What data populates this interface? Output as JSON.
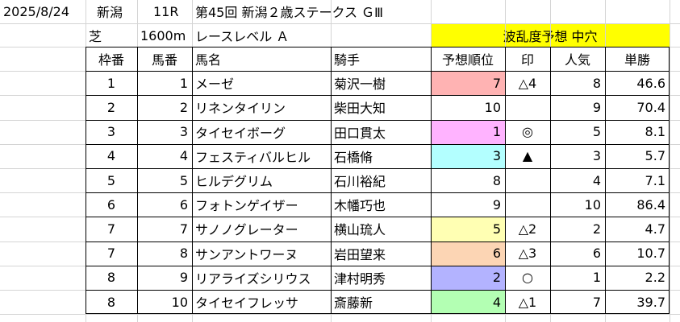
{
  "header": {
    "date": "2025/8/24",
    "venue": "新潟",
    "race_no": "11R",
    "race_name": "第45回 新潟２歳ステークス ＧⅢ",
    "surface": "芝",
    "distance": "1600m",
    "race_level": "レースレベル Ａ",
    "forecast_label": "波乱度予想 中穴"
  },
  "table": {
    "columns": [
      "枠番",
      "馬番",
      "馬名",
      "騎手",
      "予想順位",
      "印",
      "人気",
      "単勝"
    ],
    "rows": [
      {
        "waku": "1",
        "umaban": "1",
        "horse": "メーゼ",
        "jockey": "菊沢一樹",
        "rank": "7",
        "mark": "△4",
        "pop": "8",
        "odds": "46.6",
        "rank_color": "#ffb3b3"
      },
      {
        "waku": "2",
        "umaban": "2",
        "horse": "リネンタイリン",
        "jockey": "柴田大知",
        "rank": "10",
        "mark": "",
        "pop": "9",
        "odds": "70.4",
        "rank_color": ""
      },
      {
        "waku": "3",
        "umaban": "3",
        "horse": "タイセイボーグ",
        "jockey": "田口貫太",
        "rank": "1",
        "mark": "◎",
        "pop": "5",
        "odds": "8.1",
        "rank_color": "#ffb3ff"
      },
      {
        "waku": "4",
        "umaban": "4",
        "horse": "フェスティバルヒル",
        "jockey": "石橋脩",
        "rank": "3",
        "mark": "▲",
        "pop": "3",
        "odds": "5.7",
        "rank_color": "#b3ffff"
      },
      {
        "waku": "5",
        "umaban": "5",
        "horse": "ヒルデグリム",
        "jockey": "石川裕紀",
        "rank": "8",
        "mark": "",
        "pop": "4",
        "odds": "7.1",
        "rank_color": ""
      },
      {
        "waku": "6",
        "umaban": "6",
        "horse": "フォトンゲイザー",
        "jockey": "木幡巧也",
        "rank": "9",
        "mark": "",
        "pop": "10",
        "odds": "86.4",
        "rank_color": ""
      },
      {
        "waku": "7",
        "umaban": "7",
        "horse": "サノノグレーター",
        "jockey": "横山琉人",
        "rank": "5",
        "mark": "△2",
        "pop": "2",
        "odds": "4.7",
        "rank_color": "#ffffb3"
      },
      {
        "waku": "7",
        "umaban": "8",
        "horse": "サンアントワーヌ",
        "jockey": "岩田望来",
        "rank": "6",
        "mark": "△3",
        "pop": "6",
        "odds": "10.7",
        "rank_color": "#fcd5b4"
      },
      {
        "waku": "8",
        "umaban": "9",
        "horse": "リアライズシリウス",
        "jockey": "津村明秀",
        "rank": "2",
        "mark": "○",
        "pop": "1",
        "odds": "2.2",
        "rank_color": "#b3b3ff"
      },
      {
        "waku": "8",
        "umaban": "10",
        "horse": "タイセイフレッサ",
        "jockey": "斎藤新",
        "rank": "4",
        "mark": "△1",
        "pop": "7",
        "odds": "39.7",
        "rank_color": "#b3ffb3"
      }
    ]
  },
  "colors": {
    "forecast_bg": "#ffff00",
    "grid": "#d4d4d4",
    "border": "#000000"
  }
}
